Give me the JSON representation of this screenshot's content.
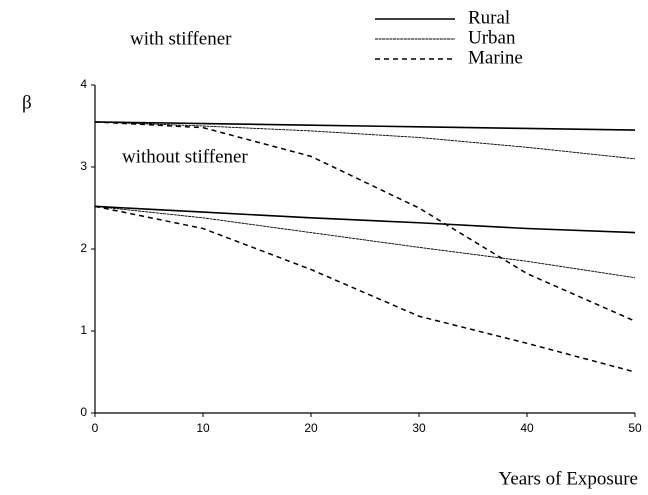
{
  "chart_data": {
    "type": "line",
    "y_label": "β",
    "x_label": "Years of Exposure",
    "annotations": [
      "with stiffener",
      "without stiffener"
    ],
    "x": [
      0,
      10,
      20,
      30,
      40,
      50
    ],
    "xlim": [
      0,
      50
    ],
    "ylim": [
      0,
      4
    ],
    "xticks": [
      0,
      10,
      20,
      30,
      40,
      50
    ],
    "yticks": [
      0,
      1,
      2,
      3,
      4
    ],
    "series": [
      {
        "name": "Rural",
        "color": "#000000",
        "style": "solid",
        "values": [
          3.55,
          3.53,
          3.51,
          3.49,
          3.47,
          3.45
        ]
      },
      {
        "name": "Urban",
        "color": "#000000",
        "style": "thin",
        "values": [
          3.55,
          3.5,
          3.44,
          3.36,
          3.24,
          3.1
        ]
      },
      {
        "name": "Marine",
        "color": "#000000",
        "style": "dashed",
        "values": [
          3.55,
          3.48,
          3.13,
          2.5,
          1.7,
          1.12
        ]
      },
      {
        "name": "Rural",
        "color": "#000000",
        "style": "solid",
        "values": [
          2.52,
          2.45,
          2.38,
          2.32,
          2.25,
          2.2
        ]
      },
      {
        "name": "Urban",
        "color": "#000000",
        "style": "thin",
        "values": [
          2.52,
          2.38,
          2.2,
          2.02,
          1.85,
          1.65
        ]
      },
      {
        "name": "Marine",
        "color": "#000000",
        "style": "dashed",
        "values": [
          2.52,
          2.25,
          1.75,
          1.18,
          0.85,
          0.5
        ]
      }
    ]
  }
}
